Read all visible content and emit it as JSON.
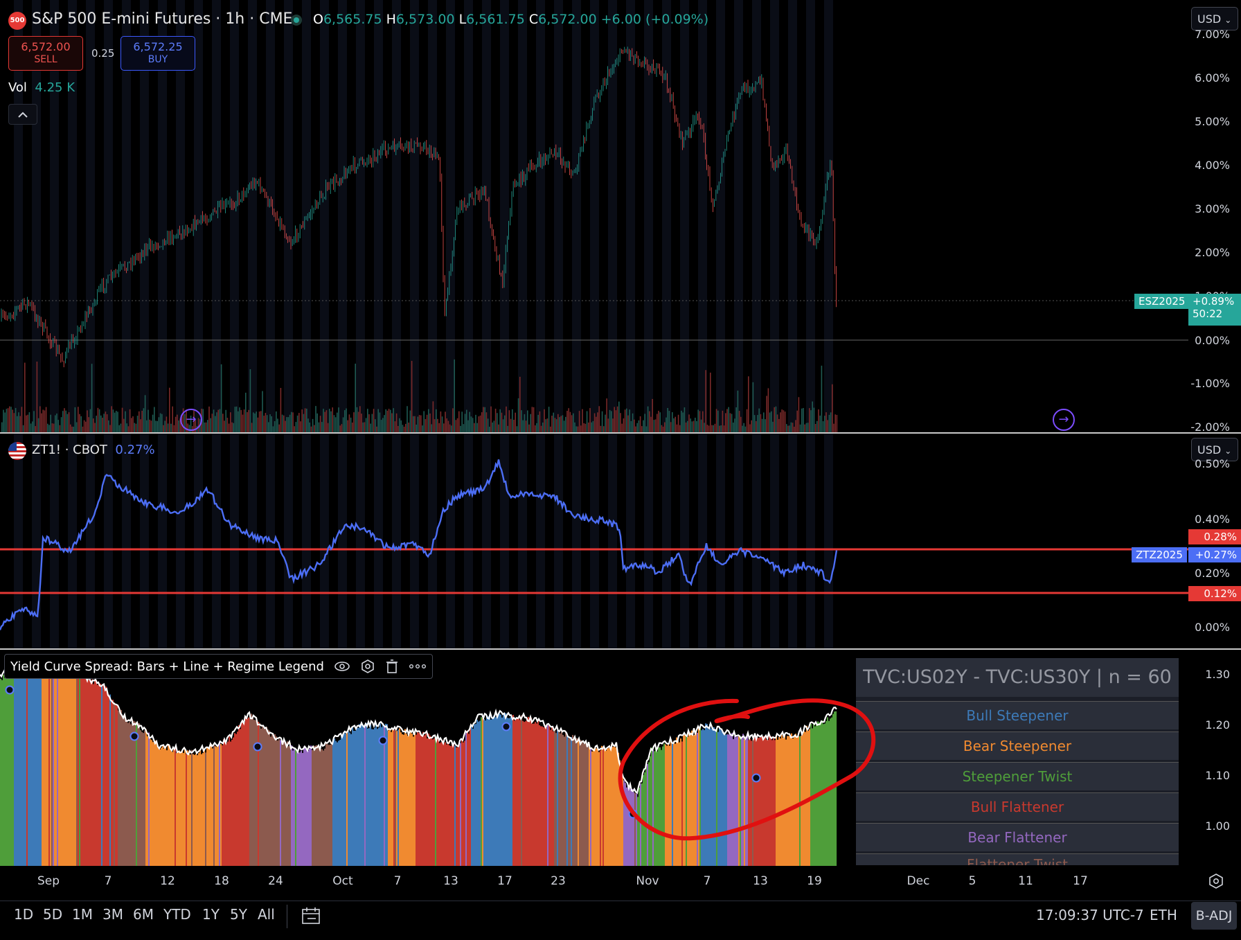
{
  "header": {
    "symbol_icon": "500",
    "title": "S&P 500 E-mini Futures · 1h · CME",
    "ohlc": {
      "o_label": "O",
      "o": "6,565.75",
      "h_label": "H",
      "h": "6,573.00",
      "l_label": "L",
      "l": "6,561.75",
      "c_label": "C",
      "c": "6,572.00",
      "change": "+6.00 (+0.09%)"
    },
    "sell_price": "6,572.00",
    "sell_label": "SELL",
    "spread": "0.25",
    "buy_price": "6,572.25",
    "buy_label": "BUY",
    "vol_label": "Vol",
    "vol_value": "4.25 K",
    "collapse_icon": "chevron-up-icon"
  },
  "currency": "USD",
  "main_pane": {
    "axis_labels": [
      "7.00%",
      "6.00%",
      "5.00%",
      "4.00%",
      "3.00%",
      "2.00%",
      "1.00%",
      "0.00%",
      "-1.00%",
      "-2.00%"
    ],
    "symbol_tag": "ESZ2025",
    "change_tag": "+0.89%",
    "countdown": "50:22",
    "colors": {
      "up": "#26a69a",
      "down": "#ef5350",
      "tag": "#26a69a"
    }
  },
  "zt_pane": {
    "title": "ZT1! · CBOT",
    "value": "0.27%",
    "flag_icon": "us-flag-icon",
    "axis_labels": [
      "0.50%",
      "0.40%",
      "0.20%",
      "0.00%"
    ],
    "symbol_tag": "ZTZ2025",
    "change_tag": "+0.27%",
    "upper_level": "0.28%",
    "lower_level": "0.12%",
    "colors": {
      "line": "#4c6ef5",
      "levels": "#e53935"
    }
  },
  "yc_pane": {
    "indicator_title": "Yield Curve Spread: Bars + Line + Regime Legend",
    "icons": [
      "eye-icon",
      "settings-icon",
      "trash-icon",
      "more-icon"
    ],
    "axis_labels": [
      "1.30",
      "1.20",
      "1.10",
      "1.00"
    ],
    "legend_title": "TVC:US02Y - TVC:US30Y | n = 60",
    "regimes": [
      {
        "label": "Bull Steepener",
        "color": "#3d7ab8"
      },
      {
        "label": "Bear Steepener",
        "color": "#f08a30"
      },
      {
        "label": "Steepener Twist",
        "color": "#4f9e3a"
      },
      {
        "label": "Bull Flattener",
        "color": "#c8392e"
      },
      {
        "label": "Bear Flattener",
        "color": "#9468c0"
      },
      {
        "label": "Flattener Twist",
        "color": "#8c5a4e"
      }
    ]
  },
  "x_axis": [
    "Sep",
    "7",
    "12",
    "18",
    "24",
    "Oct",
    "7",
    "13",
    "17",
    "23",
    "Nov",
    "7",
    "13",
    "19",
    "Dec",
    "5",
    "11",
    "17"
  ],
  "bottom": {
    "periods": [
      "1D",
      "5D",
      "1M",
      "3M",
      "6M",
      "YTD",
      "1Y",
      "5Y",
      "All"
    ],
    "calendar_icon": "goto-date-icon",
    "clock": "17:09:37 UTC-7",
    "session": "ETH",
    "adjust": "B-ADJ"
  }
}
